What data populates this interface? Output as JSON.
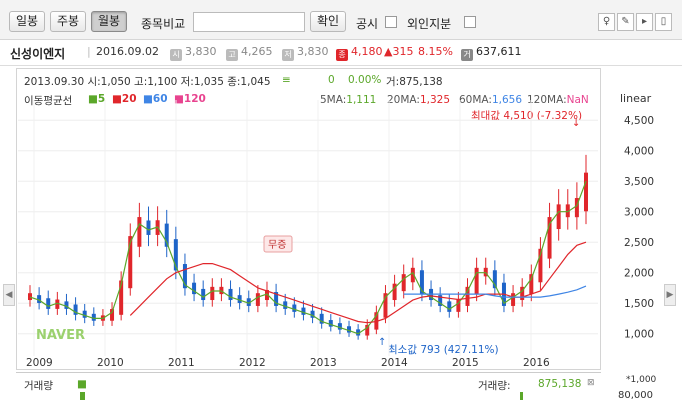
{
  "toolbar": {
    "daily": "일봉",
    "weekly": "주봉",
    "monthly": "월봉",
    "compare_label": "종목비교",
    "compare_value": "",
    "confirm": "확인",
    "disclosure": "공시",
    "foreign": "외인지분"
  },
  "stock": {
    "name": "신성이엔지",
    "date": "2016.09.02",
    "open_icon": "시",
    "open": "3,830",
    "high_icon": "고",
    "high": "4,265",
    "low_icon": "저",
    "low": "3,830",
    "close_icon": "종",
    "close": "4,180",
    "change": "▲315",
    "change_pct": "8.15%",
    "volume_icon": "거",
    "volume": "637,611"
  },
  "chart_header": {
    "line1": "2013.09.30 시:1,050 고:1,100 저:1,035 종:1,045",
    "eq": "≡",
    "change": "0",
    "change_pct": "0.00%",
    "vol": "거:875,138",
    "ma_label": "이동평균선",
    "ma5": "5",
    "ma20": "20",
    "ma60": "60",
    "ma120": "120",
    "ma_values_prefix_5": "5MA:",
    "ma5_val": "1,111",
    "ma_values_prefix_20": "20MA:",
    "ma20_val": "1,325",
    "ma_values_prefix_60": "60MA:",
    "ma60_val": "1,656",
    "ma_values_prefix_120": "120MA:",
    "ma120_val": "NaN",
    "scale": "linear",
    "max_label": "최대값 4,510 (-7.32%)",
    "min_label": "최소값  793 (427.11%)",
    "event_label": "무증",
    "watermark": "NAVER"
  },
  "colors": {
    "up": "#e0262b",
    "down": "#1e64c8",
    "ma5": "#5ba72a",
    "ma20": "#e0262b",
    "ma60": "#3f85e5",
    "ma120": "#e8438f"
  },
  "chart_data": {
    "type": "candlestick",
    "x_ticks": [
      "2009",
      "2010",
      "2011",
      "2012",
      "2013",
      "2014",
      "2015",
      "2016"
    ],
    "y_ticks": [
      "4,500",
      "4,000",
      "3,500",
      "3,000",
      "2,500",
      "2,000",
      "1,500",
      "1,000"
    ],
    "ylim": [
      700,
      4700
    ],
    "max": 4510,
    "min": 793,
    "series": [
      {
        "name": "5",
        "values": [
          1600,
          1550,
          1450,
          1500,
          1450,
          1350,
          1300,
          1250,
          1250,
          1350,
          1800,
          2500,
          2800,
          2700,
          2750,
          2500,
          2100,
          1800,
          1700,
          1600,
          1700,
          1700,
          1600,
          1550,
          1500,
          1600,
          1650,
          1500,
          1450,
          1400,
          1350,
          1300,
          1200,
          1150,
          1100,
          1050,
          1000,
          1100,
          1300,
          1600,
          1750,
          1900,
          2000,
          1700,
          1600,
          1500,
          1400,
          1500,
          1700,
          2000,
          2000,
          1800,
          1500,
          1600,
          1700,
          1900,
          2300,
          2800,
          3000,
          3000,
          3100,
          3500
        ]
      },
      {
        "name": "20",
        "values": [
          null,
          null,
          null,
          null,
          null,
          null,
          null,
          null,
          null,
          null,
          null,
          1300,
          1450,
          1600,
          1750,
          1900,
          2000,
          2050,
          2100,
          2150,
          2150,
          2100,
          2050,
          1950,
          1850,
          1750,
          1700,
          1650,
          1600,
          1550,
          1500,
          1450,
          1400,
          1350,
          1300,
          1250,
          1200,
          1180,
          1200,
          1250,
          1350,
          1450,
          1550,
          1600,
          1620,
          1600,
          1580,
          1560,
          1580,
          1600,
          1650,
          1650,
          1650,
          1600,
          1600,
          1650,
          1700,
          1900,
          2100,
          2300,
          2450,
          2500
        ]
      },
      {
        "name": "60",
        "values": [
          null,
          null,
          null,
          null,
          null,
          null,
          null,
          null,
          null,
          null,
          null,
          null,
          null,
          null,
          null,
          null,
          null,
          null,
          null,
          null,
          null,
          null,
          null,
          null,
          null,
          null,
          null,
          null,
          null,
          null,
          null,
          null,
          null,
          null,
          null,
          null,
          null,
          null,
          null,
          null,
          null,
          1650,
          1650,
          1650,
          1650,
          1650,
          1650,
          1650,
          1650,
          1650,
          1650,
          1620,
          1600,
          1600,
          1600,
          1600,
          1600,
          1620,
          1650,
          1680,
          1720,
          1780
        ]
      },
      {
        "name": "120",
        "values": []
      }
    ],
    "volume": {
      "label": "거래량",
      "value": "875,138",
      "unit": "*1,000",
      "y_tick": "80,000"
    }
  }
}
